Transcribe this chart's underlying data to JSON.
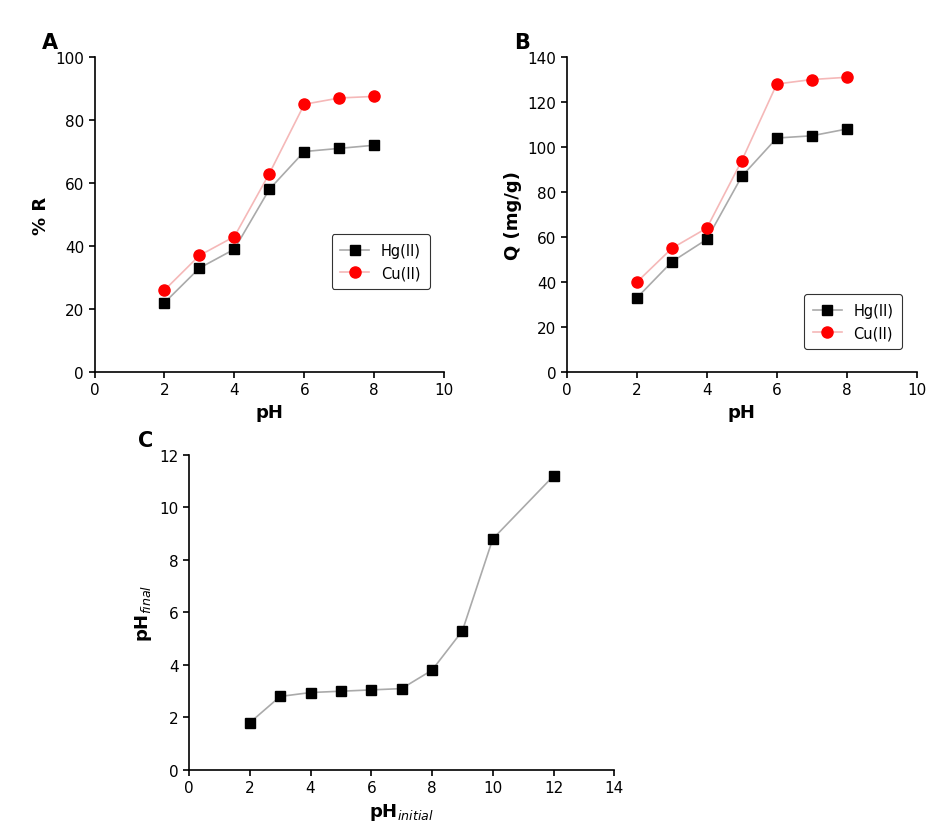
{
  "A": {
    "pH_x": [
      2,
      3,
      4,
      5,
      6,
      7,
      8
    ],
    "Hg_y": [
      22,
      33,
      39,
      58,
      70,
      71,
      72
    ],
    "Cu_y": [
      26,
      37,
      43,
      63,
      85,
      87,
      87.5
    ],
    "xlabel": "pH",
    "ylabel": "% R",
    "xlim": [
      0,
      10
    ],
    "ylim": [
      0,
      100
    ],
    "xticks": [
      0,
      2,
      4,
      6,
      8,
      10
    ],
    "yticks": [
      0,
      20,
      40,
      60,
      80,
      100
    ],
    "label": "A"
  },
  "B": {
    "pH_x": [
      2,
      3,
      4,
      5,
      6,
      7,
      8
    ],
    "Hg_y": [
      33,
      49,
      59,
      87,
      104,
      105,
      108
    ],
    "Cu_y": [
      40,
      55,
      64,
      94,
      128,
      130,
      131
    ],
    "xlabel": "pH",
    "ylabel": "Q (mg/g)",
    "xlim": [
      0,
      10
    ],
    "ylim": [
      0,
      140
    ],
    "xticks": [
      0,
      2,
      4,
      6,
      8,
      10
    ],
    "yticks": [
      0,
      20,
      40,
      60,
      80,
      100,
      120,
      140
    ],
    "label": "B"
  },
  "C": {
    "pH_initial": [
      2,
      3,
      4,
      5,
      6,
      7,
      8,
      9,
      10,
      12
    ],
    "pH_final": [
      1.8,
      2.8,
      2.95,
      3.0,
      3.05,
      3.1,
      3.8,
      5.3,
      8.8,
      11.2
    ],
    "xlabel": "pH$_{initial}$",
    "ylabel": "pH$_{final}$",
    "xlim": [
      0,
      14
    ],
    "ylim": [
      0,
      12
    ],
    "xticks": [
      0,
      2,
      4,
      6,
      8,
      10,
      12,
      14
    ],
    "yticks": [
      0,
      2,
      4,
      6,
      8,
      10,
      12
    ],
    "label": "C"
  },
  "Hg_line_color": "#aaaaaa",
  "Cu_line_color": "#f5b8b8",
  "C_line_color": "#aaaaaa",
  "Hg_marker_color": "#000000",
  "Cu_marker_color": "#ff0000"
}
